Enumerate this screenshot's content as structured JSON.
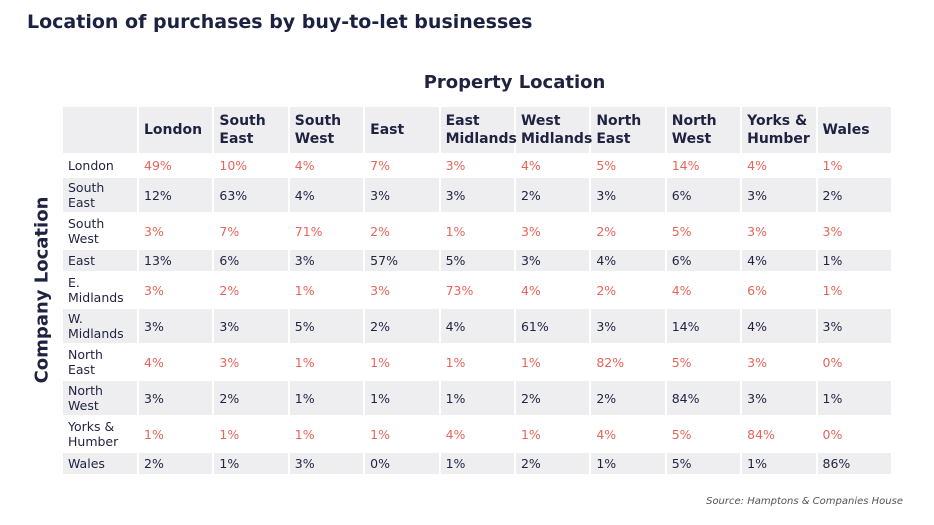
{
  "title": "Location of purchases by buy-to-let businesses",
  "column_header": "Property Location",
  "row_header": "Company Location",
  "table": {
    "columns": [
      "London",
      "South East",
      "South West",
      "East",
      "East Midlands",
      "West Midlands",
      "North East",
      "North West",
      "Yorks & Humber",
      "Wales"
    ],
    "rows": [
      {
        "label": "London",
        "cells": [
          "49%",
          "10%",
          "4%",
          "7%",
          "3%",
          "4%",
          "5%",
          "14%",
          "4%",
          "1%"
        ]
      },
      {
        "label": "South East",
        "cells": [
          "12%",
          "63%",
          "4%",
          "3%",
          "3%",
          "2%",
          "3%",
          "6%",
          "3%",
          "2%"
        ]
      },
      {
        "label": "South West",
        "cells": [
          "3%",
          "7%",
          "71%",
          "2%",
          "1%",
          "3%",
          "2%",
          "5%",
          "3%",
          "3%"
        ]
      },
      {
        "label": "East",
        "cells": [
          "13%",
          "6%",
          "3%",
          "57%",
          "5%",
          "3%",
          "4%",
          "6%",
          "4%",
          "1%"
        ]
      },
      {
        "label": "E. Midlands",
        "cells": [
          "3%",
          "2%",
          "1%",
          "3%",
          "73%",
          "4%",
          "2%",
          "4%",
          "6%",
          "1%"
        ]
      },
      {
        "label": "W. Midlands",
        "cells": [
          "3%",
          "3%",
          "5%",
          "2%",
          "4%",
          "61%",
          "3%",
          "14%",
          "4%",
          "3%"
        ]
      },
      {
        "label": "North East",
        "cells": [
          "4%",
          "3%",
          "1%",
          "1%",
          "1%",
          "1%",
          "82%",
          "5%",
          "3%",
          "0%"
        ]
      },
      {
        "label": "North West",
        "cells": [
          "3%",
          "2%",
          "1%",
          "1%",
          "1%",
          "2%",
          "2%",
          "84%",
          "3%",
          "1%"
        ]
      },
      {
        "label": "Yorks & Humber",
        "cells": [
          "1%",
          "1%",
          "1%",
          "1%",
          "4%",
          "1%",
          "4%",
          "5%",
          "84%",
          "0%"
        ]
      },
      {
        "label": "Wales",
        "cells": [
          "2%",
          "1%",
          "3%",
          "0%",
          "1%",
          "2%",
          "1%",
          "5%",
          "1%",
          "86%"
        ]
      }
    ]
  },
  "source": "Source: Hamptons & Companies House"
}
